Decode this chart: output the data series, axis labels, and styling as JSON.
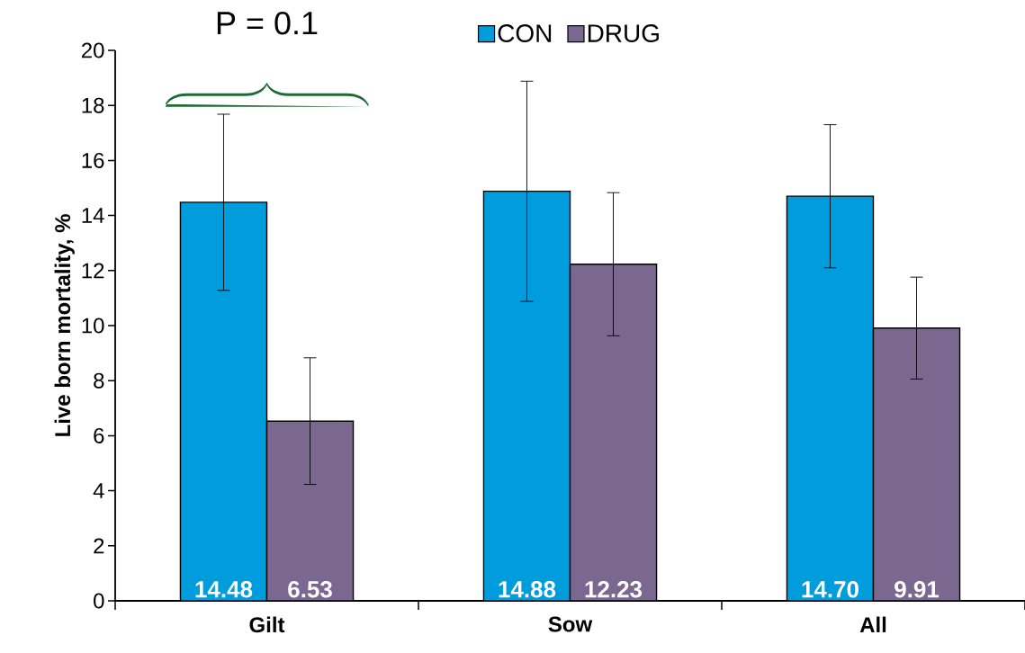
{
  "chart_data": {
    "type": "bar",
    "ylabel": "Live born mortality, %",
    "categories": [
      "Gilt",
      "Sow",
      "All"
    ],
    "series": [
      {
        "name": "CON",
        "color": "#009cdc",
        "values": [
          14.48,
          14.88,
          14.7
        ],
        "errors": [
          3.2,
          4.0,
          2.6
        ],
        "value_labels": [
          "14.48",
          "14.88",
          "14.70"
        ]
      },
      {
        "name": "DRUG",
        "color": "#7b6891",
        "values": [
          6.53,
          12.23,
          9.91
        ],
        "errors": [
          2.3,
          2.6,
          1.85
        ],
        "value_labels": [
          "6.53",
          "12.23",
          "9.91"
        ]
      }
    ],
    "ylim": [
      0,
      20
    ],
    "yticks": [
      0,
      2,
      4,
      6,
      8,
      10,
      12,
      14,
      16,
      18,
      20
    ],
    "legend": "top",
    "grid": false,
    "annotations": [
      "P = 0.1"
    ]
  }
}
